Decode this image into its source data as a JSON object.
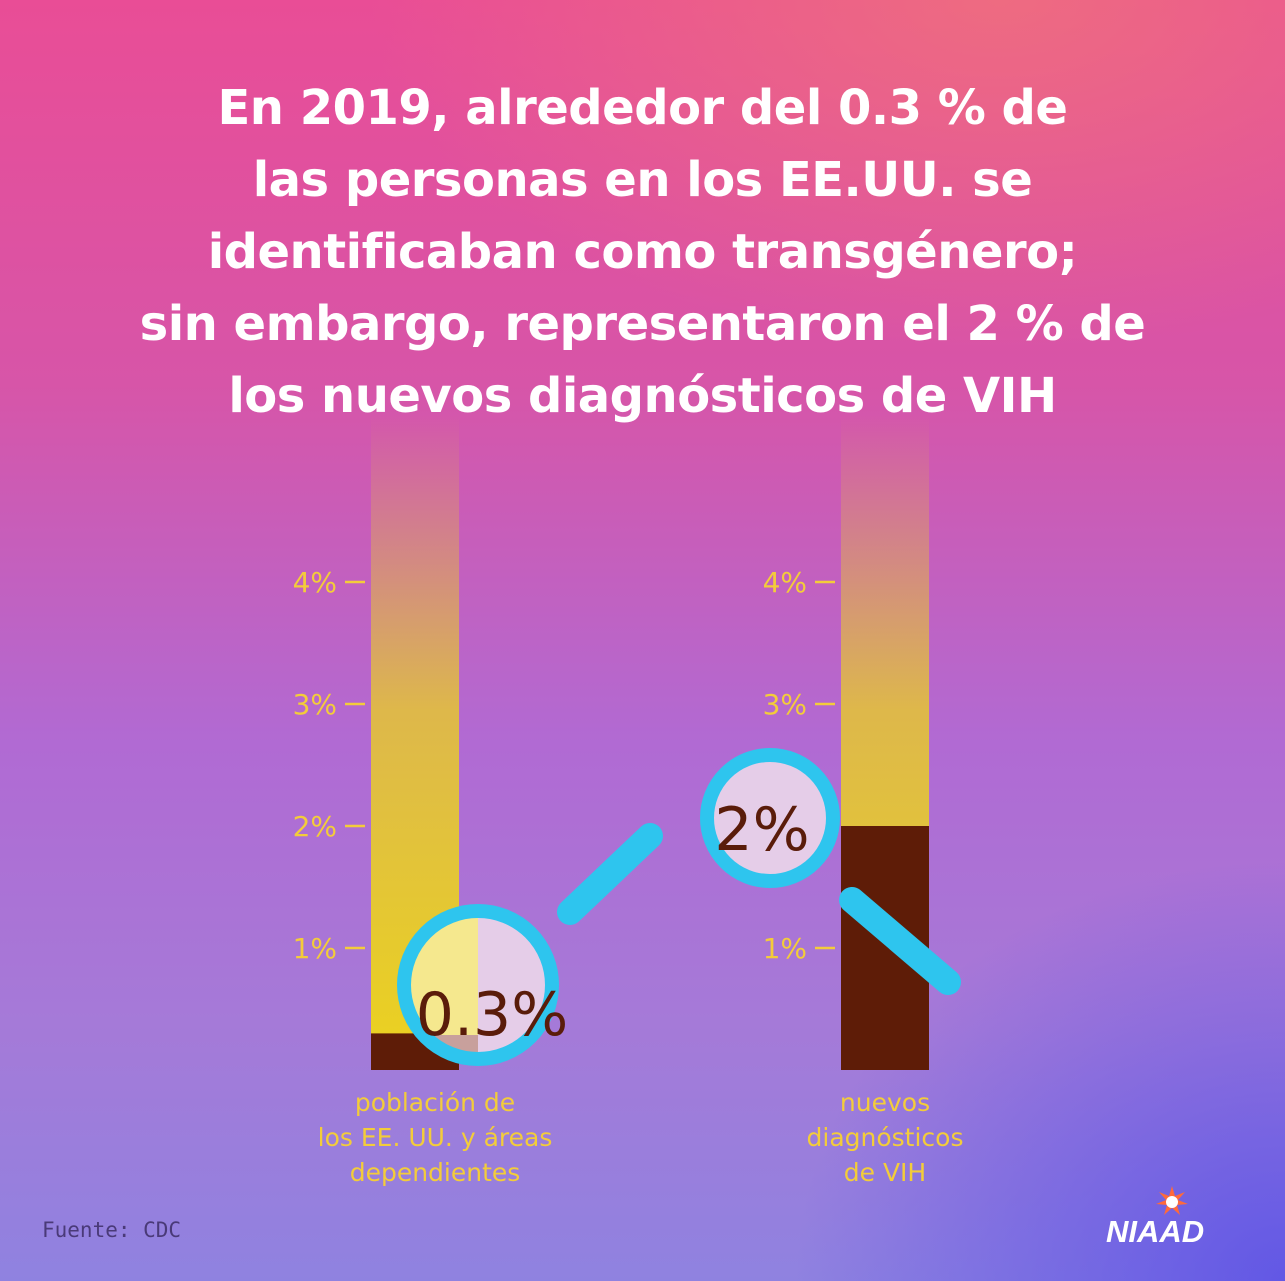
{
  "headline": "En 2019, alrededor del 0.3 % de\nlas personas en los EE.UU. se\nidentificaban como transgénero;\nsin embargo, representaron el 2 % de\nlos nuevos diagnósticos de VIH",
  "source": "Fuente: CDC",
  "logo": "NIAAD",
  "colors": {
    "bar_fill": "#ecd21e",
    "bar_value": "#5e1c07",
    "axis_label": "#f3cc3a",
    "magnifier_ring": "#2ec5ee",
    "lens_light": "#e5cde8",
    "lens_yellow": "#f5e88e",
    "lens_brown": "#c8a09c"
  },
  "chart_data": {
    "type": "bar",
    "title": "En 2019, alrededor del 0.3 % de las personas en los EE.UU. se identificaban como transgénero; sin embargo, representaron el 2 % de los nuevos diagnósticos de VIH",
    "categories": [
      "población de\nlos EE. UU. y áreas\ndependientes",
      "nuevos\ndiagnósticos\nde VIH"
    ],
    "values": [
      0.3,
      2
    ],
    "value_labels": [
      "0.3%",
      "2%"
    ],
    "y_ticks": [
      {
        "value": 1,
        "label": "1%"
      },
      {
        "value": 2,
        "label": "2%"
      },
      {
        "value": 3,
        "label": "3%"
      },
      {
        "value": 4,
        "label": "4%"
      }
    ],
    "ylim": [
      0,
      5
    ],
    "ylabel": "",
    "xlabel": ""
  }
}
